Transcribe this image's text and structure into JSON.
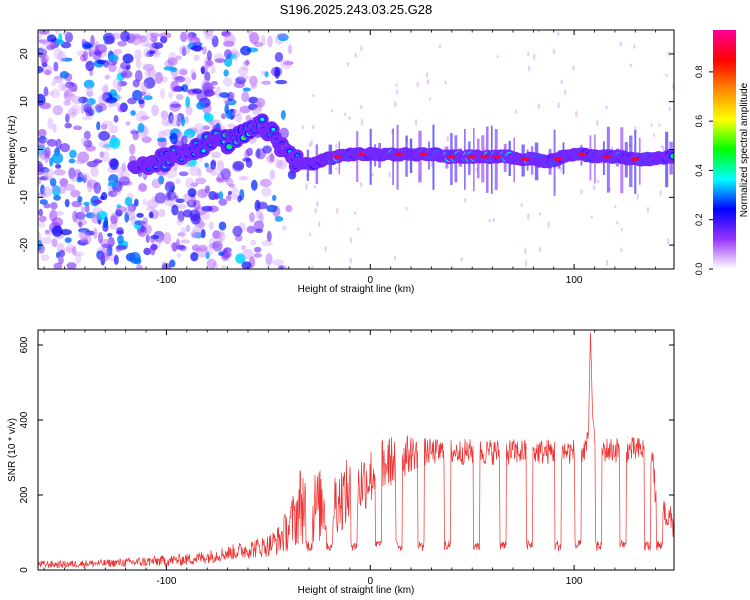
{
  "title": "S196.2025.243.03.25.G28",
  "chart_data": [
    {
      "type": "heatmap",
      "title": "S196.2025.243.03.25.G28",
      "xlabel": "Height of straight line (km)",
      "ylabel": "Frequency (Hz)",
      "xlim": [
        -163,
        149
      ],
      "ylim": [
        -25,
        25
      ],
      "x_ticks": [
        -100,
        0,
        100
      ],
      "y_ticks": [
        -20,
        -10,
        0,
        10,
        20
      ],
      "colorbar": {
        "label": "Normalized spectral amplitude",
        "range": [
          0,
          0.97
        ],
        "ticks": [
          0,
          0.2,
          0.4,
          0.6,
          0.8
        ],
        "colors": [
          "#ffffff",
          "#9933ff",
          "#0000ff",
          "#00ffff",
          "#00ff00",
          "#ffff00",
          "#ff8800",
          "#ff0000",
          "#ff0099"
        ]
      },
      "ridge": {
        "x": [
          -112,
          -106,
          -100,
          -94,
          -88,
          -82,
          -76,
          -70,
          -64,
          -58,
          -52,
          -46,
          -40,
          -34,
          -28,
          -22,
          -16,
          -10,
          -4,
          2,
          8,
          14,
          20,
          26,
          32,
          38,
          44,
          50,
          56,
          62,
          68,
          74,
          80,
          86,
          92,
          98,
          104,
          110,
          116,
          122,
          128,
          134,
          140,
          146
        ],
        "freq": [
          -3.5,
          -3,
          -2,
          -1,
          0,
          1,
          2,
          1.5,
          2.5,
          4,
          5,
          2,
          -1,
          -3,
          -3,
          -2,
          -1.5,
          -1,
          -1,
          -1,
          -1,
          -1,
          -1,
          -1,
          -1,
          -1.5,
          -1.5,
          -1.5,
          -1.5,
          -1.5,
          -1.5,
          -2,
          -2,
          -2.5,
          -2,
          -1,
          -1,
          -1.5,
          -1.5,
          -1.5,
          -2,
          -2,
          -2,
          -1.5
        ],
        "amplitude": [
          0.35,
          0.4,
          0.4,
          0.35,
          0.4,
          0.45,
          0.4,
          0.45,
          0.5,
          0.5,
          0.4,
          0.35,
          0.3,
          0.4,
          0.5,
          0.6,
          0.75,
          0.6,
          0.6,
          0.65,
          0.7,
          0.75,
          0.7,
          0.75,
          0.7,
          0.8,
          0.8,
          0.9,
          0.9,
          0.8,
          0.8,
          0.75,
          0.8,
          0.6,
          0.7,
          0.6,
          0.6,
          0.7,
          0.75,
          0.7,
          0.6,
          0.7,
          0.6,
          0.5
        ]
      }
    },
    {
      "type": "line",
      "xlabel": "Height of straight line (km)",
      "ylabel": "SNR (10 * v/v)",
      "xlim": [
        -163,
        149
      ],
      "ylim": [
        0,
        640
      ],
      "x_ticks": [
        -100,
        0,
        100
      ],
      "y_ticks": [
        0,
        200,
        400,
        600
      ],
      "series": [
        {
          "name": "SNR",
          "color": "#ee3333",
          "x": [
            -163,
            -150,
            -140,
            -130,
            -120,
            -110,
            -100,
            -90,
            -80,
            -70,
            -60,
            -50,
            -45,
            -40,
            -36,
            -34,
            -30,
            -25,
            -20,
            -15,
            -10,
            -5,
            0,
            5,
            10,
            15,
            20,
            25,
            30,
            40,
            50,
            60,
            70,
            80,
            90,
            95,
            100,
            105,
            107,
            108,
            109,
            110,
            112,
            115,
            120,
            125,
            130,
            135,
            138,
            140,
            143,
            146,
            149
          ],
          "base": [
            15,
            15,
            17,
            18,
            20,
            22,
            25,
            28,
            35,
            45,
            55,
            65,
            80,
            110,
            150,
            180,
            165,
            170,
            180,
            190,
            210,
            230,
            250,
            270,
            290,
            300,
            310,
            315,
            315,
            315,
            315,
            315,
            315,
            315,
            315,
            315,
            315,
            320,
            340,
            630,
            420,
            330,
            320,
            320,
            320,
            320,
            320,
            320,
            320,
            200,
            170,
            140,
            120
          ],
          "noise": [
            10,
            10,
            10,
            10,
            12,
            14,
            15,
            16,
            18,
            20,
            25,
            30,
            40,
            60,
            90,
            110,
            100,
            100,
            95,
            90,
            90,
            85,
            80,
            75,
            70,
            60,
            50,
            40,
            35,
            35,
            35,
            35,
            35,
            35,
            35,
            35,
            35,
            35,
            35,
            20,
            60,
            35,
            35,
            35,
            35,
            35,
            35,
            35,
            35,
            40,
            40,
            40,
            40
          ]
        }
      ],
      "dips": [
        -30,
        -20,
        -8,
        4,
        14,
        25,
        38,
        52,
        65,
        78,
        92,
        102,
        112,
        124,
        136,
        142
      ]
    }
  ]
}
